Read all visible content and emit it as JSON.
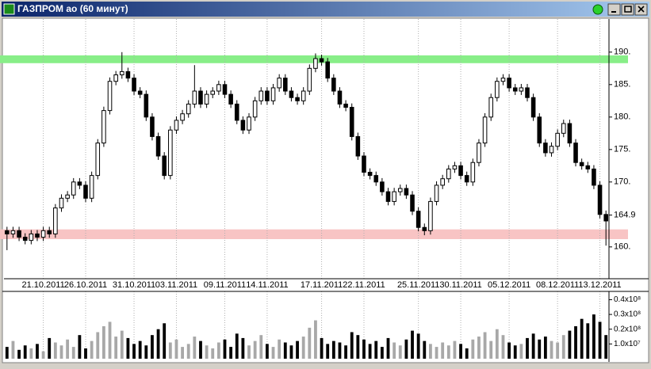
{
  "chart_data": {
    "type": "candlestick",
    "title": "ГАЗПРОМ ао (60 минут)",
    "xlim": [
      -0.5,
      99.5
    ],
    "xticks": [
      {
        "value": 6,
        "label": "21.10.2011"
      },
      {
        "value": 13,
        "label": "26.10.2011"
      },
      {
        "value": 21,
        "label": "31.10.2011"
      },
      {
        "value": 28,
        "label": "03.11.2011"
      },
      {
        "value": 36,
        "label": "09.11.2011"
      },
      {
        "value": 43,
        "label": "14.11.2011"
      },
      {
        "value": 52,
        "label": "17.11.2011"
      },
      {
        "value": 59,
        "label": "22.11.2011"
      },
      {
        "value": 68,
        "label": "25.11.2011"
      },
      {
        "value": 75,
        "label": "30.11.2011"
      },
      {
        "value": 83,
        "label": "05.12.2011"
      },
      {
        "value": 91,
        "label": "08.12.2011"
      },
      {
        "value": 98,
        "label": "13.12.2011"
      }
    ],
    "ylim": [
      155.1,
      195.1
    ],
    "yticks": [
      {
        "value": 160,
        "label": "160."
      },
      {
        "value": 164.9,
        "label": "164.9"
      },
      {
        "value": 170,
        "label": "170."
      },
      {
        "value": 175,
        "label": "175."
      },
      {
        "value": 180,
        "label": "180."
      },
      {
        "value": 185,
        "label": "185."
      },
      {
        "value": 190,
        "label": "190."
      }
    ],
    "grid": true,
    "up_color": "#ffffff",
    "down_color": "#000000",
    "bands": [
      {
        "low": 188.3,
        "high": 189.5,
        "color": "#88ee88"
      },
      {
        "low": 161.2,
        "high": 162.7,
        "color": "#f8c4c4"
      }
    ],
    "open": [
      162.5,
      162,
      162.5,
      161.5,
      161,
      162,
      161.5,
      162.5,
      162,
      166,
      167.5,
      168,
      170,
      169.5,
      167.5,
      171,
      176,
      181,
      185.5,
      186.5,
      187,
      186,
      184,
      183.5,
      180,
      177,
      174,
      171,
      178,
      179.5,
      180.5,
      182,
      184,
      182,
      183.5,
      184,
      185,
      183.5,
      182,
      179.5,
      178,
      180,
      182.5,
      184,
      182.5,
      184.5,
      186,
      184,
      183,
      182.5,
      184,
      187.5,
      189,
      188.5,
      186,
      184,
      182,
      181.5,
      177,
      174,
      171.5,
      171,
      170,
      168.5,
      167,
      168.5,
      169,
      168,
      165.5,
      163,
      162.5,
      167,
      169.5,
      170.5,
      172,
      172.5,
      171,
      170,
      173,
      176,
      180,
      183,
      185.5,
      186,
      184.5,
      184,
      184.5,
      183,
      180,
      176,
      174.5,
      175.5,
      177.5,
      179,
      176,
      173,
      172.5,
      172,
      169.5,
      165
    ],
    "high": [
      163.1,
      163.1,
      163.1,
      162.1,
      162.6,
      162.6,
      163.1,
      163.1,
      166.6,
      168.1,
      168.6,
      170.6,
      170.6,
      170.1,
      171.6,
      176.6,
      181.6,
      186.1,
      187.1,
      190,
      187.6,
      186.6,
      184.6,
      184.1,
      180.6,
      177.6,
      174.6,
      178.6,
      180.1,
      181.1,
      182.6,
      188,
      184.6,
      184.1,
      184.6,
      185.6,
      185.6,
      184.1,
      182.6,
      180.1,
      180.6,
      183.1,
      184.6,
      184.6,
      185.1,
      186.6,
      186.6,
      184.6,
      183.6,
      184.6,
      188.1,
      189.8,
      189.6,
      189.1,
      186.6,
      184.6,
      182.6,
      182.1,
      177.6,
      174.6,
      172.1,
      171.6,
      170.6,
      169.1,
      169.1,
      169.6,
      169.6,
      168.6,
      166.1,
      163.6,
      167.6,
      170.1,
      171.1,
      172.6,
      173.1,
      173.1,
      171.6,
      173.6,
      176.6,
      180.6,
      183.6,
      186.1,
      186.6,
      186.6,
      185.1,
      185.1,
      185.1,
      183.6,
      180.6,
      176.6,
      176.1,
      178.1,
      179.6,
      179.6,
      176.6,
      173.6,
      173.1,
      172.6,
      170.1,
      165.6
    ],
    "low": [
      159.5,
      161.4,
      160.9,
      160.4,
      160.4,
      160.9,
      160.9,
      161.4,
      161.4,
      165.4,
      166.9,
      167.4,
      168.9,
      166.9,
      166.9,
      170.4,
      175.4,
      180.4,
      184.9,
      185.9,
      185.4,
      183.4,
      182.9,
      179.4,
      176.4,
      173.4,
      170.4,
      170.4,
      177.4,
      178.9,
      179.9,
      181.4,
      181.4,
      181.4,
      182.9,
      183.4,
      182.9,
      181.4,
      178.9,
      177.4,
      177.4,
      179.4,
      181.9,
      181.9,
      181.9,
      183.9,
      183.4,
      182.4,
      181.9,
      181.9,
      183.4,
      186.9,
      187.9,
      185.4,
      183.4,
      181.4,
      180.9,
      176.4,
      173.4,
      170.9,
      170.4,
      169.4,
      167.9,
      166.4,
      166.4,
      167.9,
      167.4,
      164.9,
      162.4,
      161.8,
      161.9,
      166.4,
      168.9,
      169.9,
      171.4,
      170.4,
      169.4,
      169.4,
      172.4,
      175.4,
      179.4,
      182.4,
      184.9,
      183.9,
      183.4,
      183.4,
      182.4,
      179.4,
      175.4,
      173.9,
      173.9,
      174.9,
      176.9,
      175.4,
      172.4,
      171.9,
      171.4,
      168.9,
      164.4,
      160.2
    ],
    "close": [
      162,
      162.5,
      161.5,
      161,
      162,
      161.5,
      162.5,
      162,
      166,
      167.5,
      168,
      170,
      169.5,
      167.5,
      171,
      176,
      181,
      185.5,
      186.5,
      187,
      186,
      184,
      183.5,
      180,
      177,
      174,
      171,
      178,
      179.5,
      180.5,
      182,
      184,
      182,
      183.5,
      184,
      185,
      183.5,
      182,
      179.5,
      178,
      180,
      182.5,
      184,
      182.5,
      184.5,
      186,
      184,
      183,
      182.5,
      184,
      187.5,
      189,
      188.5,
      186,
      184,
      182,
      181.5,
      177,
      174,
      171.5,
      171,
      170,
      168.5,
      167,
      168.5,
      169,
      168,
      165.5,
      163,
      162.5,
      167,
      169.5,
      170.5,
      172,
      172.5,
      171,
      170,
      173,
      176,
      180,
      183,
      185.5,
      186,
      184.5,
      184,
      184.5,
      183,
      180,
      176,
      174.5,
      175.5,
      177.5,
      179,
      176,
      173,
      172.5,
      172,
      169.5,
      165,
      164
    ],
    "volume": {
      "type": "bar",
      "up_color": "#a8a8a8",
      "down_color": "#000000",
      "ylim": [
        0,
        44000000
      ],
      "yticks": [
        {
          "value": 10000000,
          "label": "1.0x10⁷"
        },
        {
          "value": 20000000,
          "label": "0.2x10⁸"
        },
        {
          "value": 30000000,
          "label": "0.3x10⁸"
        },
        {
          "value": 40000000,
          "label": "0.4x10⁸"
        }
      ],
      "values": [
        8000000,
        12000000,
        6000000,
        9000000,
        7000000,
        10000000,
        5000000,
        14000000,
        11000000,
        9000000,
        13000000,
        8000000,
        16000000,
        7000000,
        12000000,
        18000000,
        22000000,
        25000000,
        15000000,
        19000000,
        14000000,
        10000000,
        12000000,
        9000000,
        16000000,
        20000000,
        24000000,
        11000000,
        13000000,
        8000000,
        10000000,
        15000000,
        12000000,
        9000000,
        7000000,
        11000000,
        13000000,
        8000000,
        17000000,
        14000000,
        9000000,
        12000000,
        16000000,
        10000000,
        8000000,
        13000000,
        11000000,
        9000000,
        12000000,
        15000000,
        21000000,
        26000000,
        14000000,
        10000000,
        12000000,
        11000000,
        9000000,
        18000000,
        16000000,
        13000000,
        10000000,
        12000000,
        8000000,
        14000000,
        11000000,
        9000000,
        13000000,
        19000000,
        17000000,
        12000000,
        10000000,
        8000000,
        11000000,
        9000000,
        12000000,
        10000000,
        7000000,
        13000000,
        15000000,
        18000000,
        12000000,
        20000000,
        16000000,
        11000000,
        9000000,
        10000000,
        14000000,
        17000000,
        13000000,
        15000000,
        12000000,
        11000000,
        16000000,
        19000000,
        22000000,
        27000000,
        24000000,
        30000000,
        25000000,
        16000000
      ]
    }
  }
}
